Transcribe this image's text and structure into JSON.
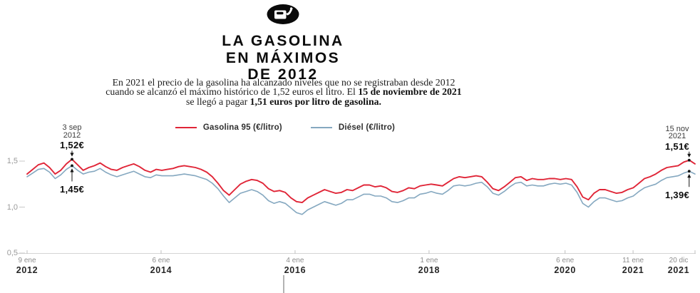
{
  "header": {
    "icon": "fuel-can-icon",
    "title_line1": "LA GASOLINA",
    "title_line2": "EN MÁXIMOS",
    "title_line3": "DE 2012"
  },
  "intro": {
    "text_1": "En 2021 el precio de la gasolina ha alcanzado niveles que no se registraban desde 2012 cuando se alcanzó el máximo histórico de 1,52 euros el litro. El ",
    "bold_1": "15 de noviembre de 2021",
    "text_2": " se llegó a pagar ",
    "bold_2": "1,51 euros por litro de gasolina."
  },
  "chart_data": {
    "type": "line",
    "unit": "€/litro",
    "grid": "off",
    "legend_position": "top",
    "t_range": [
      2012.03,
      2021.95
    ],
    "y_range": [
      0.5,
      1.6
    ],
    "points_start": "2012-01",
    "points_interval": "monthly",
    "series": [
      {
        "name": "Gasolina 95 (€/litro)",
        "color": "#e02537",
        "values": [
          1.36,
          1.41,
          1.46,
          1.48,
          1.43,
          1.36,
          1.4,
          1.47,
          1.52,
          1.46,
          1.4,
          1.43,
          1.45,
          1.48,
          1.44,
          1.41,
          1.4,
          1.43,
          1.45,
          1.47,
          1.44,
          1.4,
          1.38,
          1.41,
          1.4,
          1.41,
          1.42,
          1.44,
          1.45,
          1.44,
          1.43,
          1.41,
          1.38,
          1.33,
          1.26,
          1.18,
          1.13,
          1.19,
          1.25,
          1.28,
          1.3,
          1.29,
          1.26,
          1.2,
          1.17,
          1.18,
          1.16,
          1.1,
          1.06,
          1.05,
          1.1,
          1.13,
          1.16,
          1.19,
          1.17,
          1.15,
          1.16,
          1.19,
          1.18,
          1.21,
          1.24,
          1.24,
          1.22,
          1.23,
          1.21,
          1.17,
          1.16,
          1.18,
          1.21,
          1.2,
          1.23,
          1.24,
          1.25,
          1.24,
          1.23,
          1.27,
          1.31,
          1.33,
          1.32,
          1.33,
          1.34,
          1.33,
          1.27,
          1.2,
          1.18,
          1.22,
          1.27,
          1.32,
          1.33,
          1.29,
          1.31,
          1.3,
          1.3,
          1.31,
          1.31,
          1.3,
          1.31,
          1.3,
          1.22,
          1.11,
          1.08,
          1.15,
          1.19,
          1.19,
          1.17,
          1.15,
          1.16,
          1.19,
          1.21,
          1.26,
          1.31,
          1.33,
          1.36,
          1.4,
          1.43,
          1.44,
          1.45,
          1.49,
          1.51,
          1.47
        ]
      },
      {
        "name": "Diésel (€/litro)",
        "color": "#85a8c0",
        "values": [
          1.33,
          1.37,
          1.41,
          1.42,
          1.38,
          1.31,
          1.35,
          1.41,
          1.45,
          1.4,
          1.36,
          1.38,
          1.39,
          1.42,
          1.38,
          1.35,
          1.33,
          1.35,
          1.37,
          1.39,
          1.36,
          1.33,
          1.32,
          1.35,
          1.34,
          1.34,
          1.34,
          1.35,
          1.36,
          1.35,
          1.34,
          1.32,
          1.3,
          1.26,
          1.2,
          1.12,
          1.05,
          1.1,
          1.15,
          1.17,
          1.19,
          1.17,
          1.13,
          1.07,
          1.04,
          1.06,
          1.04,
          0.99,
          0.94,
          0.92,
          0.97,
          1.0,
          1.03,
          1.06,
          1.04,
          1.02,
          1.04,
          1.08,
          1.08,
          1.11,
          1.14,
          1.14,
          1.12,
          1.12,
          1.1,
          1.06,
          1.05,
          1.07,
          1.1,
          1.1,
          1.14,
          1.15,
          1.17,
          1.15,
          1.14,
          1.18,
          1.23,
          1.24,
          1.23,
          1.24,
          1.26,
          1.27,
          1.22,
          1.15,
          1.13,
          1.17,
          1.22,
          1.26,
          1.27,
          1.23,
          1.24,
          1.23,
          1.23,
          1.25,
          1.26,
          1.25,
          1.26,
          1.24,
          1.16,
          1.04,
          1.0,
          1.06,
          1.1,
          1.1,
          1.08,
          1.06,
          1.07,
          1.1,
          1.12,
          1.17,
          1.21,
          1.23,
          1.25,
          1.29,
          1.32,
          1.33,
          1.34,
          1.37,
          1.39,
          1.36
        ]
      }
    ],
    "x_ticks": [
      {
        "line1": "9 ene",
        "line2": "2012",
        "t": 2012.03
      },
      {
        "line1": "6 ene",
        "line2": "2014",
        "t": 2014.02
      },
      {
        "line1": "4 ene",
        "line2": "2016",
        "t": 2016.01
      },
      {
        "line1": "1 ene",
        "line2": "2018",
        "t": 2018.0
      },
      {
        "line1": "6 ene",
        "line2": "2020",
        "t": 2020.02
      },
      {
        "line1": "11 ene",
        "line2": "2021",
        "t": 2021.03
      },
      {
        "line1": "20 dic",
        "line2": "2021",
        "t": 2021.97
      }
    ],
    "y_ticks": [
      {
        "label": "1,5",
        "value": 1.5
      },
      {
        "label": "1,0",
        "value": 1.0
      },
      {
        "label": "0,5",
        "value": 0.5
      }
    ],
    "annotations": [
      {
        "date_line1": "3 sep",
        "date_line2": "2012",
        "value_label": "1,52€",
        "t": 2012.697,
        "value": 1.52,
        "series": "Gasolina 95",
        "placement": "above"
      },
      {
        "value_label": "1,45€",
        "t": 2012.697,
        "value": 1.45,
        "series": "Diésel",
        "placement": "below"
      },
      {
        "date_line1": "15 nov",
        "date_line2": "2021",
        "value_label": "1,51€",
        "t": 2021.863,
        "value": 1.51,
        "series": "Gasolina 95",
        "placement": "above"
      },
      {
        "value_label": "1,39€",
        "t": 2021.863,
        "value": 1.39,
        "series": "Diésel",
        "placement": "below"
      }
    ]
  },
  "colors": {
    "gasolina_red": "#e02537",
    "diesel_blue": "#85a8c0",
    "axis_line": "#d4d4d4",
    "tick_text": "#8d8d8d",
    "year_text": "#262626"
  }
}
